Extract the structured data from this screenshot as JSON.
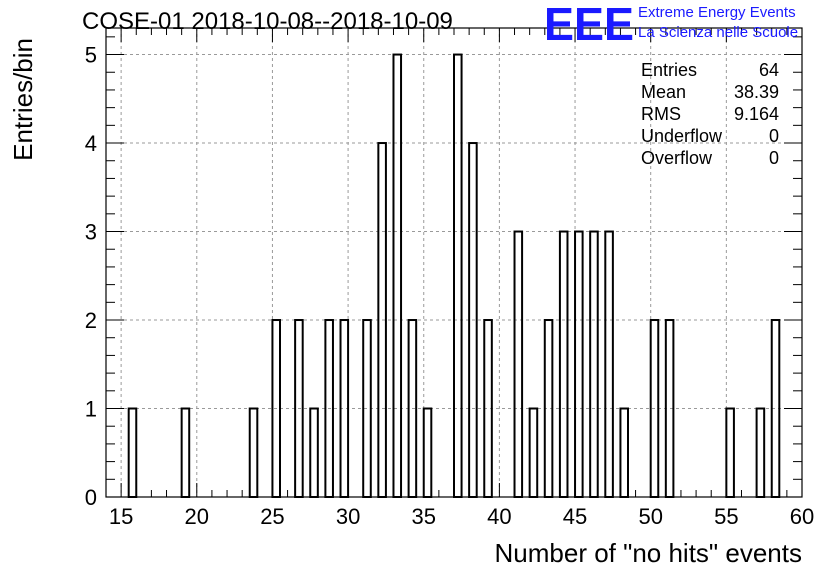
{
  "header": {
    "title": "COSE-01 2018-10-08--2018-10-09",
    "logo_text": "EEE",
    "logo_line1": "Extreme Energy Events",
    "logo_line2": "La Scienza nelle Scuole"
  },
  "stats": [
    {
      "label": "Entries",
      "value": "64"
    },
    {
      "label": "Mean",
      "value": "38.39"
    },
    {
      "label": "RMS",
      "value": "9.164"
    },
    {
      "label": "Underflow",
      "value": "0"
    },
    {
      "label": "Overflow",
      "value": "0"
    }
  ],
  "colors": {
    "logo_blue": "#1a1aff",
    "grid": "#9a9a9a",
    "ink": "#000000"
  },
  "chart_data": {
    "type": "bar",
    "title": "COSE-01 2018-10-08--2018-10-09",
    "xlabel": "Number of \"no hits\" events",
    "ylabel": "Entries/bin",
    "xlim": [
      14,
      60
    ],
    "ylim": [
      0,
      5.3
    ],
    "bin_width": 0.5,
    "grid": true,
    "xticks": [
      15,
      20,
      25,
      30,
      35,
      40,
      45,
      50,
      55,
      60
    ],
    "yticks": [
      0,
      1,
      2,
      3,
      4,
      5
    ],
    "bins": [
      {
        "x": 15.5,
        "count": 1
      },
      {
        "x": 19.0,
        "count": 1
      },
      {
        "x": 23.5,
        "count": 1
      },
      {
        "x": 25.0,
        "count": 2
      },
      {
        "x": 26.5,
        "count": 2
      },
      {
        "x": 27.5,
        "count": 1
      },
      {
        "x": 28.5,
        "count": 2
      },
      {
        "x": 29.5,
        "count": 2
      },
      {
        "x": 31.0,
        "count": 2
      },
      {
        "x": 32.0,
        "count": 4
      },
      {
        "x": 33.0,
        "count": 5
      },
      {
        "x": 34.0,
        "count": 2
      },
      {
        "x": 35.0,
        "count": 1
      },
      {
        "x": 37.0,
        "count": 5
      },
      {
        "x": 38.0,
        "count": 4
      },
      {
        "x": 39.0,
        "count": 2
      },
      {
        "x": 41.0,
        "count": 3
      },
      {
        "x": 42.0,
        "count": 1
      },
      {
        "x": 43.0,
        "count": 2
      },
      {
        "x": 44.0,
        "count": 3
      },
      {
        "x": 45.0,
        "count": 3
      },
      {
        "x": 46.0,
        "count": 3
      },
      {
        "x": 47.0,
        "count": 3
      },
      {
        "x": 48.0,
        "count": 1
      },
      {
        "x": 50.0,
        "count": 2
      },
      {
        "x": 51.0,
        "count": 2
      },
      {
        "x": 55.0,
        "count": 1
      },
      {
        "x": 57.0,
        "count": 1
      },
      {
        "x": 58.0,
        "count": 2
      }
    ]
  }
}
